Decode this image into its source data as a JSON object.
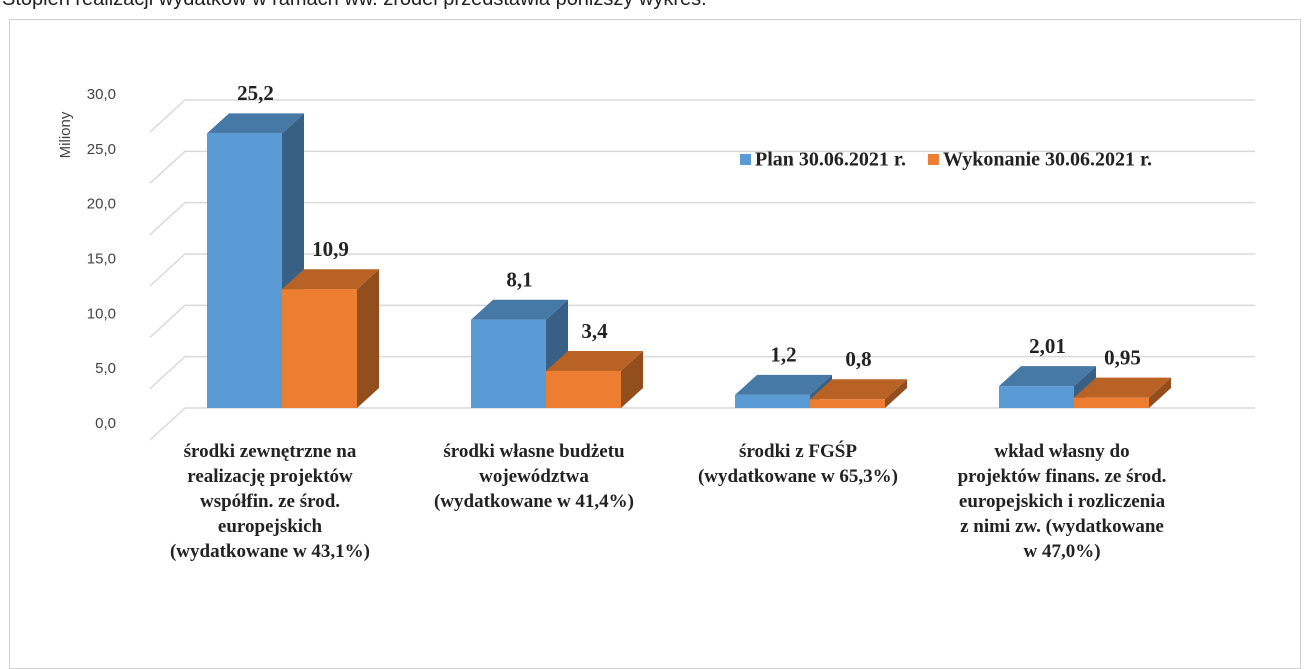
{
  "intro_text": "Stopień realizacji wydatków w ramach ww. źródeł przedstawia poniższy wykres.",
  "chart_data": {
    "type": "bar3d",
    "y_label": "Miliony",
    "categories": [
      "środki zewnętrzne na\nrealizację projektów\nwspółfin. ze środ.\neuropejskich\n(wydatkowane w 43,1%)",
      "środki własne budżetu\nwojewództwa\n(wydatkowane w 41,4%)",
      "środki z FGŚP\n(wydatkowane w 65,3%)",
      "wkład własny do\nprojektów finans. ze środ.\neuropejskich i rozliczenia\nz nimi zw. (wydatkowane\nw 47,0%)"
    ],
    "series": [
      {
        "name": "Plan 30.06.2021 r.",
        "color": "#5b9bd5",
        "values": [
          25.2,
          8.1,
          1.2,
          2.01
        ],
        "value_labels": [
          "25,2",
          "8,1",
          "1,2",
          "2,01"
        ]
      },
      {
        "name": "Wykonanie 30.06.2021 r.",
        "color": "#ed7d31",
        "values": [
          10.9,
          3.4,
          0.8,
          0.95
        ],
        "value_labels": [
          "10,9",
          "3,4",
          "0,8",
          "0,95"
        ]
      }
    ],
    "ylim": [
      0,
      30
    ],
    "yticks": [
      {
        "value": 0,
        "label": "0,0"
      },
      {
        "value": 5,
        "label": "5,0"
      },
      {
        "value": 10,
        "label": "10,0"
      },
      {
        "value": 15,
        "label": "15,0"
      },
      {
        "value": 20,
        "label": "20,0"
      },
      {
        "value": 25,
        "label": "25,0"
      },
      {
        "value": 30,
        "label": "30,0"
      }
    ],
    "grid": true
  }
}
